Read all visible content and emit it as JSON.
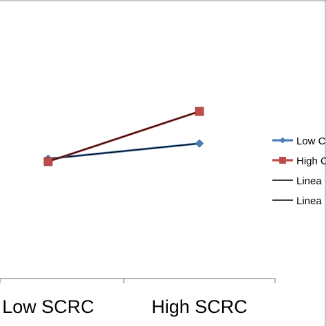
{
  "chart_data": {
    "type": "line",
    "categories": [
      "Low SCRC",
      "High SCRC"
    ],
    "ylim": [
      0,
      10
    ],
    "series": [
      {
        "name": "Low C",
        "values": [
          4.3,
          4.85
        ],
        "color": "#4a7ebb",
        "marker": "diamond"
      },
      {
        "name": "High C",
        "values": [
          4.2,
          6.0
        ],
        "color": "#be4b48",
        "marker": "square"
      }
    ],
    "trendlines": [
      {
        "name": "Linea",
        "of_series": 0,
        "color": "#000000"
      },
      {
        "name": "Linea",
        "of_series": 1,
        "color": "#000000"
      }
    ],
    "legend": {
      "position": "right"
    },
    "grid": false
  }
}
